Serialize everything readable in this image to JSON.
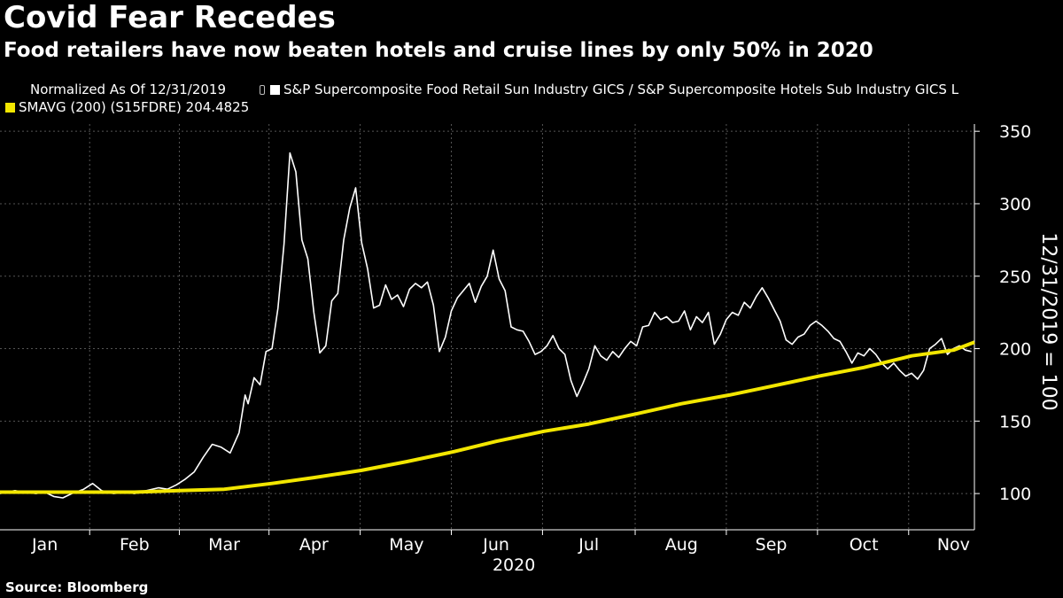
{
  "title": "Covid Fear Recedes",
  "subtitle": "Food retailers have now beaten hotels and cruise lines by only 50% in 2020",
  "legend": {
    "normalized": "Normalized As Of 12/31/2019",
    "series1": "S&P Supercomposite Food Retail Sun Industry GICS / S&P Supercomposite Hotels Sub Industry GICS L",
    "series2": "SMAVG (200) (S15FDRE) 204.4825"
  },
  "source": "Source: Bloomberg",
  "icons": {
    "pin": "pin-icon"
  },
  "colors": {
    "background": "#000000",
    "series1": "#ffffff",
    "series2": "#f2e600",
    "grid": "#555555"
  },
  "chart_data": {
    "type": "line",
    "xlabel": "2020",
    "ylabel": "12/31/2019 = 100",
    "ylim": [
      75,
      355
    ],
    "yticks": [
      100,
      150,
      200,
      250,
      300,
      350
    ],
    "xlim": [
      "2020-01-01",
      "2020-11-22"
    ],
    "xticks": [
      {
        "label": "Jan",
        "date": "2020-01-16"
      },
      {
        "label": "Feb",
        "date": "2020-02-15"
      },
      {
        "label": "Mar",
        "date": "2020-03-16"
      },
      {
        "label": "Apr",
        "date": "2020-04-15"
      },
      {
        "label": "May",
        "date": "2020-05-16"
      },
      {
        "label": "Jun",
        "date": "2020-06-15"
      },
      {
        "label": "Jul",
        "date": "2020-07-16"
      },
      {
        "label": "Aug",
        "date": "2020-08-16"
      },
      {
        "label": "Sep",
        "date": "2020-09-15"
      },
      {
        "label": "Oct",
        "date": "2020-10-16"
      },
      {
        "label": "Nov",
        "date": "2020-11-15"
      }
    ],
    "year_label": "2020",
    "grid": true,
    "legend_position": "top-left",
    "series": [
      {
        "name": "S&P Supercomposite Food Retail Sun Industry GICS / S&P Supercomposite Hotels Sub Industry GICS L",
        "color": "#ffffff",
        "points": [
          [
            "2020-01-01",
            100
          ],
          [
            "2020-01-03",
            101
          ],
          [
            "2020-01-06",
            102
          ],
          [
            "2020-01-09",
            101
          ],
          [
            "2020-01-13",
            100
          ],
          [
            "2020-01-16",
            101
          ],
          [
            "2020-01-19",
            98
          ],
          [
            "2020-01-22",
            97
          ],
          [
            "2020-01-25",
            100
          ],
          [
            "2020-01-29",
            103
          ],
          [
            "2020-02-01",
            107
          ],
          [
            "2020-02-04",
            102
          ],
          [
            "2020-02-08",
            100
          ],
          [
            "2020-02-12",
            101
          ],
          [
            "2020-02-15",
            100
          ],
          [
            "2020-02-19",
            102
          ],
          [
            "2020-02-23",
            104
          ],
          [
            "2020-02-26",
            103
          ],
          [
            "2020-02-29",
            106
          ],
          [
            "2020-03-03",
            110
          ],
          [
            "2020-03-06",
            115
          ],
          [
            "2020-03-09",
            125
          ],
          [
            "2020-03-12",
            134
          ],
          [
            "2020-03-15",
            132
          ],
          [
            "2020-03-18",
            128
          ],
          [
            "2020-03-21",
            142
          ],
          [
            "2020-03-23",
            168
          ],
          [
            "2020-03-24",
            162
          ],
          [
            "2020-03-26",
            180
          ],
          [
            "2020-03-28",
            175
          ],
          [
            "2020-03-30",
            198
          ],
          [
            "2020-04-01",
            200
          ],
          [
            "2020-04-03",
            228
          ],
          [
            "2020-04-05",
            272
          ],
          [
            "2020-04-07",
            335
          ],
          [
            "2020-04-09",
            322
          ],
          [
            "2020-04-11",
            275
          ],
          [
            "2020-04-13",
            262
          ],
          [
            "2020-04-15",
            225
          ],
          [
            "2020-04-17",
            197
          ],
          [
            "2020-04-19",
            202
          ],
          [
            "2020-04-21",
            233
          ],
          [
            "2020-04-23",
            238
          ],
          [
            "2020-04-25",
            275
          ],
          [
            "2020-04-27",
            297
          ],
          [
            "2020-04-29",
            311
          ],
          [
            "2020-05-01",
            273
          ],
          [
            "2020-05-03",
            255
          ],
          [
            "2020-05-05",
            228
          ],
          [
            "2020-05-07",
            230
          ],
          [
            "2020-05-09",
            244
          ],
          [
            "2020-05-11",
            234
          ],
          [
            "2020-05-13",
            237
          ],
          [
            "2020-05-15",
            229
          ],
          [
            "2020-05-17",
            241
          ],
          [
            "2020-05-19",
            245
          ],
          [
            "2020-05-21",
            242
          ],
          [
            "2020-05-23",
            246
          ],
          [
            "2020-05-25",
            230
          ],
          [
            "2020-05-27",
            198
          ],
          [
            "2020-05-29",
            208
          ],
          [
            "2020-05-31",
            226
          ],
          [
            "2020-06-02",
            235
          ],
          [
            "2020-06-04",
            240
          ],
          [
            "2020-06-06",
            245
          ],
          [
            "2020-06-08",
            232
          ],
          [
            "2020-06-10",
            243
          ],
          [
            "2020-06-12",
            250
          ],
          [
            "2020-06-14",
            268
          ],
          [
            "2020-06-16",
            248
          ],
          [
            "2020-06-18",
            240
          ],
          [
            "2020-06-20",
            215
          ],
          [
            "2020-06-22",
            213
          ],
          [
            "2020-06-24",
            212
          ],
          [
            "2020-06-26",
            205
          ],
          [
            "2020-06-28",
            196
          ],
          [
            "2020-06-30",
            198
          ],
          [
            "2020-07-02",
            202
          ],
          [
            "2020-07-04",
            209
          ],
          [
            "2020-07-06",
            200
          ],
          [
            "2020-07-08",
            196
          ],
          [
            "2020-07-10",
            178
          ],
          [
            "2020-07-12",
            167
          ],
          [
            "2020-07-14",
            176
          ],
          [
            "2020-07-16",
            186
          ],
          [
            "2020-07-18",
            202
          ],
          [
            "2020-07-20",
            195
          ],
          [
            "2020-07-22",
            192
          ],
          [
            "2020-07-24",
            198
          ],
          [
            "2020-07-26",
            194
          ],
          [
            "2020-07-28",
            200
          ],
          [
            "2020-07-30",
            205
          ],
          [
            "2020-08-01",
            202
          ],
          [
            "2020-08-03",
            215
          ],
          [
            "2020-08-05",
            216
          ],
          [
            "2020-08-07",
            225
          ],
          [
            "2020-08-09",
            220
          ],
          [
            "2020-08-11",
            222
          ],
          [
            "2020-08-13",
            218
          ],
          [
            "2020-08-15",
            219
          ],
          [
            "2020-08-17",
            226
          ],
          [
            "2020-08-19",
            213
          ],
          [
            "2020-08-21",
            222
          ],
          [
            "2020-08-23",
            218
          ],
          [
            "2020-08-25",
            225
          ],
          [
            "2020-08-27",
            203
          ],
          [
            "2020-08-29",
            210
          ],
          [
            "2020-08-31",
            220
          ],
          [
            "2020-09-02",
            225
          ],
          [
            "2020-09-04",
            223
          ],
          [
            "2020-09-06",
            232
          ],
          [
            "2020-09-08",
            228
          ],
          [
            "2020-09-10",
            236
          ],
          [
            "2020-09-12",
            242
          ],
          [
            "2020-09-14",
            235
          ],
          [
            "2020-09-16",
            227
          ],
          [
            "2020-09-18",
            219
          ],
          [
            "2020-09-20",
            206
          ],
          [
            "2020-09-22",
            203
          ],
          [
            "2020-09-24",
            208
          ],
          [
            "2020-09-26",
            210
          ],
          [
            "2020-09-28",
            216
          ],
          [
            "2020-09-30",
            219
          ],
          [
            "2020-10-02",
            216
          ],
          [
            "2020-10-04",
            212
          ],
          [
            "2020-10-06",
            207
          ],
          [
            "2020-10-08",
            205
          ],
          [
            "2020-10-10",
            198
          ],
          [
            "2020-10-12",
            190
          ],
          [
            "2020-10-14",
            197
          ],
          [
            "2020-10-16",
            195
          ],
          [
            "2020-10-18",
            200
          ],
          [
            "2020-10-20",
            196
          ],
          [
            "2020-10-22",
            190
          ],
          [
            "2020-10-24",
            186
          ],
          [
            "2020-10-26",
            190
          ],
          [
            "2020-10-28",
            185
          ],
          [
            "2020-10-30",
            181
          ],
          [
            "2020-11-01",
            183
          ],
          [
            "2020-11-03",
            179
          ],
          [
            "2020-11-05",
            185
          ],
          [
            "2020-11-07",
            200
          ],
          [
            "2020-11-09",
            203
          ],
          [
            "2020-11-11",
            207
          ],
          [
            "2020-11-13",
            196
          ],
          [
            "2020-11-15",
            200
          ],
          [
            "2020-11-17",
            202
          ],
          [
            "2020-11-19",
            199
          ],
          [
            "2020-11-21",
            198
          ]
        ]
      },
      {
        "name": "SMAVG (200) (S15FDRE) 204.4825",
        "color": "#f2e600",
        "points": [
          [
            "2020-01-01",
            101
          ],
          [
            "2020-02-15",
            101
          ],
          [
            "2020-03-01",
            102
          ],
          [
            "2020-03-16",
            103
          ],
          [
            "2020-04-01",
            107
          ],
          [
            "2020-04-15",
            111
          ],
          [
            "2020-05-01",
            116
          ],
          [
            "2020-05-16",
            122
          ],
          [
            "2020-06-01",
            129
          ],
          [
            "2020-06-15",
            136
          ],
          [
            "2020-07-01",
            143
          ],
          [
            "2020-07-16",
            148
          ],
          [
            "2020-08-01",
            155
          ],
          [
            "2020-08-16",
            162
          ],
          [
            "2020-09-01",
            168
          ],
          [
            "2020-09-15",
            174
          ],
          [
            "2020-10-01",
            181
          ],
          [
            "2020-10-16",
            187
          ],
          [
            "2020-11-01",
            195
          ],
          [
            "2020-11-15",
            199
          ],
          [
            "2020-11-22",
            204.5
          ]
        ]
      }
    ]
  }
}
